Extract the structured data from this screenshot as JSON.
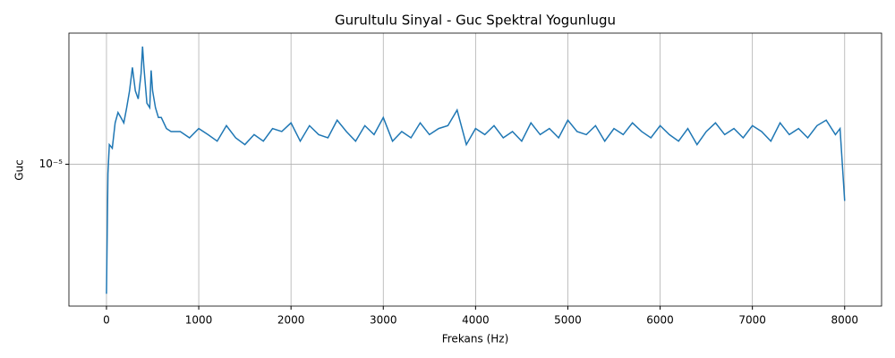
{
  "chart_data": {
    "type": "line",
    "title": "Gurultulu Sinyal - Guc Spektral Yogunlugu",
    "x_label": "Frekans (Hz)",
    "y_label": "Guc",
    "log_y": true,
    "grid": true,
    "xlim": [
      -407,
      8400
    ],
    "xticks": [
      0,
      1000,
      2000,
      3000,
      4000,
      5000,
      6000,
      7000,
      8000
    ],
    "ylim": [
      2e-06,
      4.43e-05
    ],
    "yticks": [
      {
        "value": 1e-05,
        "label": "10⁻⁵"
      }
    ],
    "x": [
      0,
      16,
      31,
      63,
      94,
      125,
      156,
      188,
      219,
      250,
      281,
      313,
      344,
      375,
      391,
      406,
      438,
      469,
      484,
      500,
      531,
      563,
      594,
      650,
      700,
      800,
      900,
      1000,
      1100,
      1200,
      1300,
      1400,
      1500,
      1600,
      1700,
      1800,
      1900,
      2000,
      2100,
      2200,
      2300,
      2400,
      2500,
      2600,
      2700,
      2800,
      2900,
      3000,
      3100,
      3200,
      3300,
      3400,
      3500,
      3600,
      3700,
      3800,
      3900,
      4000,
      4100,
      4200,
      4300,
      4400,
      4500,
      4600,
      4700,
      4800,
      4900,
      5000,
      5100,
      5200,
      5300,
      5400,
      5500,
      5600,
      5700,
      5800,
      5900,
      6000,
      6100,
      6200,
      6300,
      6400,
      6500,
      6600,
      6700,
      6800,
      6900,
      7000,
      7100,
      7200,
      7300,
      7400,
      7500,
      7600,
      7700,
      7800,
      7900,
      7950,
      8000
    ],
    "series": [
      {
        "color": "#1f77b4",
        "values": [
          2.3e-06,
          9e-06,
          1.25e-05,
          1.2e-05,
          1.6e-05,
          1.8e-05,
          1.7e-05,
          1.6e-05,
          1.9e-05,
          2.3e-05,
          3e-05,
          2.3e-05,
          2.1e-05,
          2.8e-05,
          3.8e-05,
          3e-05,
          2e-05,
          1.9e-05,
          2.9e-05,
          2.3e-05,
          1.9e-05,
          1.7e-05,
          1.7e-05,
          1.5e-05,
          1.45e-05,
          1.45e-05,
          1.35e-05,
          1.5e-05,
          1.4e-05,
          1.3e-05,
          1.55e-05,
          1.35e-05,
          1.25e-05,
          1.4e-05,
          1.3e-05,
          1.5e-05,
          1.45e-05,
          1.6e-05,
          1.3e-05,
          1.55e-05,
          1.4e-05,
          1.35e-05,
          1.65e-05,
          1.45e-05,
          1.3e-05,
          1.55e-05,
          1.4e-05,
          1.7e-05,
          1.3e-05,
          1.45e-05,
          1.35e-05,
          1.6e-05,
          1.4e-05,
          1.5e-05,
          1.55e-05,
          1.85e-05,
          1.25e-05,
          1.5e-05,
          1.4e-05,
          1.55e-05,
          1.35e-05,
          1.45e-05,
          1.3e-05,
          1.6e-05,
          1.4e-05,
          1.5e-05,
          1.35e-05,
          1.65e-05,
          1.45e-05,
          1.4e-05,
          1.55e-05,
          1.3e-05,
          1.5e-05,
          1.4e-05,
          1.6e-05,
          1.45e-05,
          1.35e-05,
          1.55e-05,
          1.4e-05,
          1.3e-05,
          1.5e-05,
          1.25e-05,
          1.45e-05,
          1.6e-05,
          1.4e-05,
          1.5e-05,
          1.35e-05,
          1.55e-05,
          1.45e-05,
          1.3e-05,
          1.6e-05,
          1.4e-05,
          1.5e-05,
          1.35e-05,
          1.55e-05,
          1.65e-05,
          1.4e-05,
          1.5e-05,
          6.6e-06
        ]
      }
    ]
  }
}
